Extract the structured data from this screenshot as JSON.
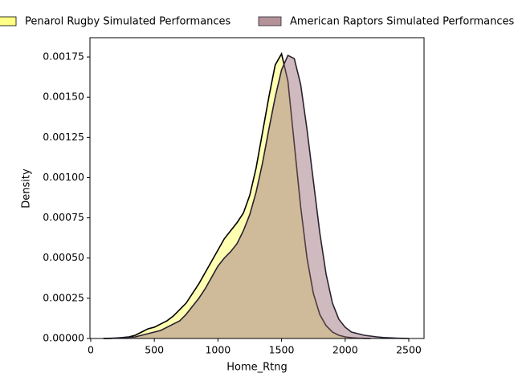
{
  "chart_data": {
    "type": "kde",
    "xlabel": "Home_Rtng",
    "ylabel": "Density",
    "x": [
      100,
      150,
      200,
      250,
      300,
      350,
      400,
      450,
      500,
      550,
      600,
      650,
      700,
      750,
      800,
      850,
      900,
      950,
      1000,
      1050,
      1100,
      1150,
      1200,
      1250,
      1300,
      1350,
      1400,
      1450,
      1500,
      1550,
      1600,
      1650,
      1700,
      1750,
      1800,
      1850,
      1900,
      1950,
      2000,
      2050,
      2100,
      2150,
      2200,
      2250,
      2300,
      2350,
      2400,
      2450,
      2500
    ],
    "series": [
      {
        "name": "Penarol Rugby Simulated Performances",
        "color": "#ffff66",
        "edgecolor": "#000000",
        "values": [
          0,
          1e-06,
          3e-06,
          6e-06,
          1e-05,
          2e-05,
          4e-05,
          6e-05,
          7e-05,
          9e-05,
          0.00011,
          0.00014,
          0.00018,
          0.00022,
          0.00028,
          0.00034,
          0.00041,
          0.00048,
          0.00055,
          0.00062,
          0.00067,
          0.00072,
          0.00078,
          0.00089,
          0.00106,
          0.00128,
          0.0015,
          0.0017,
          0.00177,
          0.0016,
          0.00121,
          0.00082,
          0.0005,
          0.00028,
          0.00015,
          8e-05,
          4e-05,
          2e-05,
          1e-05,
          5e-06,
          2e-06,
          1e-06,
          0,
          null,
          null,
          null,
          null,
          null,
          null
        ]
      },
      {
        "name": "American Raptors Simulated Performances",
        "color": "#a07880",
        "edgecolor": "#2a2230",
        "values": [
          0,
          0,
          2e-06,
          4e-06,
          7e-06,
          1e-05,
          2e-05,
          3e-05,
          4e-05,
          5e-05,
          7e-05,
          9e-05,
          0.00011,
          0.00015,
          0.0002,
          0.00025,
          0.00031,
          0.00038,
          0.00045,
          0.0005,
          0.00054,
          0.00059,
          0.00067,
          0.00077,
          0.00091,
          0.00109,
          0.0013,
          0.0015,
          0.00167,
          0.00176,
          0.00174,
          0.00158,
          0.0013,
          0.00098,
          0.00066,
          0.0004,
          0.00022,
          0.00012,
          7e-05,
          4e-05,
          3e-05,
          2e-05,
          1.5e-05,
          1e-05,
          6e-06,
          4e-06,
          2e-06,
          1e-06,
          0
        ]
      }
    ],
    "xlim": [
      -6,
      2620
    ],
    "xticks": [
      0,
      500,
      1000,
      1500,
      2000,
      2500
    ],
    "ylim": [
      0,
      0.00187
    ],
    "yticks": [
      {
        "value": 0,
        "label": "0.00000"
      },
      {
        "value": 0.00025,
        "label": "0.00025"
      },
      {
        "value": 0.0005,
        "label": "0.00050"
      },
      {
        "value": 0.00075,
        "label": "0.00075"
      },
      {
        "value": 0.001,
        "label": "0.00100"
      },
      {
        "value": 0.00125,
        "label": "0.00125"
      },
      {
        "value": 0.0015,
        "label": "0.00150"
      },
      {
        "value": 0.00175,
        "label": "0.00175"
      }
    ],
    "legend": "top",
    "fill_opacity": 0.5
  }
}
